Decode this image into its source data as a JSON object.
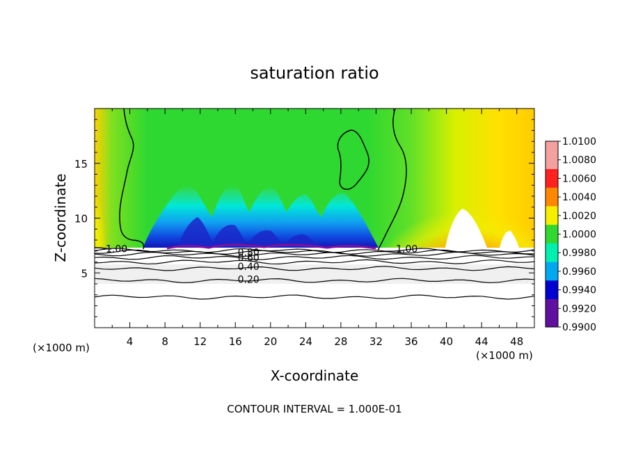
{
  "chart_data": {
    "type": "heatmap",
    "title": "saturation ratio",
    "xlabel": "X-coordinate",
    "ylabel": "Z-coordinate",
    "x_unit_left": "(×1000 m)",
    "x_unit_right": "(×1000 m)",
    "footer": "CONTOUR INTERVAL = 1.000E-01",
    "xlim": [
      0,
      50
    ],
    "ylim": [
      0,
      20
    ],
    "x_ticks": [
      4,
      8,
      12,
      16,
      20,
      24,
      28,
      32,
      36,
      40,
      44,
      48
    ],
    "y_ticks": [
      5,
      10,
      15
    ],
    "colorbar": {
      "ticks": [
        "1.0100",
        "1.0080",
        "1.0060",
        "1.0040",
        "1.0020",
        "1.0000",
        "0.9980",
        "0.9960",
        "0.9940",
        "0.9920",
        "0.9900"
      ],
      "range": [
        0.99,
        1.01
      ],
      "colors": [
        "#f5a0a0",
        "#ff2020",
        "#ff8800",
        "#f7ee00",
        "#30d830",
        "#00f0b0",
        "#00a8f0",
        "#0000d0",
        "#6010a0"
      ]
    },
    "contour_labels": [
      {
        "text": "1.00",
        "x": 2.5,
        "z": 7.2
      },
      {
        "text": "1.00",
        "x": 35.5,
        "z": 7.2
      },
      {
        "text": "0.80",
        "x": 17.5,
        "z": 6.9
      },
      {
        "text": "0.60",
        "x": 17.5,
        "z": 6.4
      },
      {
        "text": "0.40",
        "x": 17.5,
        "z": 5.6
      },
      {
        "text": "0.20",
        "x": 17.5,
        "z": 4.4
      }
    ],
    "contour_levels_below": [
      0.2,
      0.4,
      0.6,
      0.8,
      1.0
    ],
    "contour_heights_below": [
      2.8,
      4.3,
      5.4,
      6.0,
      6.4,
      6.7,
      6.9,
      7.05
    ],
    "cloud_base_z": 7.1
  }
}
